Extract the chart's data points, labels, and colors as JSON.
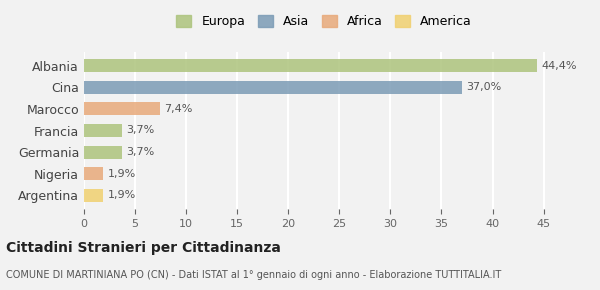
{
  "categories": [
    "Albania",
    "Cina",
    "Marocco",
    "Francia",
    "Germania",
    "Nigeria",
    "Argentina"
  ],
  "values": [
    44.4,
    37.0,
    7.4,
    3.7,
    3.7,
    1.9,
    1.9
  ],
  "labels": [
    "44,4%",
    "37,0%",
    "7,4%",
    "3,7%",
    "3,7%",
    "1,9%",
    "1,9%"
  ],
  "colors": [
    "#adc47d",
    "#7b9bb5",
    "#e8a97a",
    "#adc47d",
    "#adc47d",
    "#e8a97a",
    "#f0d070"
  ],
  "legend_items": [
    {
      "label": "Europa",
      "color": "#adc47d"
    },
    {
      "label": "Asia",
      "color": "#7b9bb5"
    },
    {
      "label": "Africa",
      "color": "#e8a97a"
    },
    {
      "label": "America",
      "color": "#f0d070"
    }
  ],
  "xlim": [
    0,
    47
  ],
  "xticks": [
    0,
    5,
    10,
    15,
    20,
    25,
    30,
    35,
    40,
    45
  ],
  "title_main": "Cittadini Stranieri per Cittadinanza",
  "title_sub": "COMUNE DI MARTINIANA PO (CN) - Dati ISTAT al 1° gennaio di ogni anno - Elaborazione TUTTITALIA.IT",
  "bg_color": "#f2f2f2",
  "bar_alpha": 0.85
}
